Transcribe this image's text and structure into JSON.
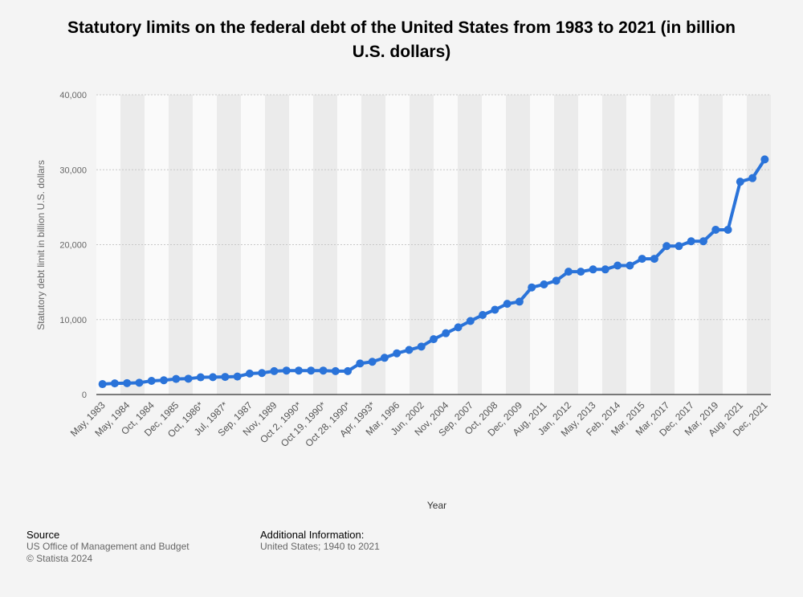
{
  "title": "Statutory limits on the federal debt of the United States from 1983 to 2021 (in billion U.S. dollars)",
  "footer": {
    "source_heading": "Source",
    "source_lines": [
      "US Office of Management and Budget",
      "© Statista 2024"
    ],
    "info_heading": "Additional Information:",
    "info_lines": [
      "United States; 1940 to 2021"
    ]
  },
  "colors": {
    "line": "#2a73d9",
    "band": "#ebebeb",
    "background": "#f4f4f4",
    "grid": "#c8c8c8"
  },
  "chart_data": {
    "type": "line",
    "title": "Statutory limits on the federal debt of the United States from 1983 to 2021 (in billion U.S. dollars)",
    "xlabel": "Year",
    "ylabel": "Statutory debt limit in billion U.S. dollars",
    "ylim": [
      0,
      40000
    ],
    "yticks": [
      0,
      10000,
      20000,
      30000,
      40000
    ],
    "ytick_labels": [
      "0",
      "10,000",
      "20,000",
      "30,000",
      "40,000"
    ],
    "grid": true,
    "legend": "none",
    "categories": [
      "May, 1983",
      "",
      "May, 1984",
      "",
      "Oct, 1984",
      "",
      "Dec, 1985",
      "",
      "Oct, 1986*",
      "",
      "Jul, 1987*",
      "",
      "Sep, 1987",
      "",
      "Nov, 1989",
      "",
      "Oct 2, 1990*",
      "",
      "Oct 19, 1990*",
      "",
      "Oct 28, 1990*",
      "",
      "Apr, 1993*",
      "",
      "Mar, 1996",
      "",
      "Jun, 2002",
      "",
      "Nov, 2004",
      "",
      "Sep, 2007",
      "",
      "Oct, 2008",
      "",
      "Dec, 2009",
      "",
      "Aug, 2011",
      "",
      "Jan, 2012",
      "",
      "May, 2013",
      "",
      "Feb, 2014",
      "",
      "Mar, 2015",
      "",
      "Mar, 2017",
      "",
      "Dec, 2017",
      "",
      "Mar, 2019",
      "",
      "Aug, 2021",
      "",
      "Dec, 2021"
    ],
    "series": [
      {
        "values": [
          1390,
          1490,
          1520,
          1573,
          1823,
          1904,
          2079,
          2111,
          2300,
          2320,
          2352,
          2400,
          2800,
          2870,
          3123,
          3195,
          3195,
          3195,
          3195,
          3122,
          3123,
          4145,
          4370,
          4900,
          5500,
          5950,
          6400,
          7384,
          8184,
          8965,
          9815,
          10615,
          11315,
          12104,
          12394,
          14294,
          14694,
          15194,
          16394,
          16394,
          16699,
          16699,
          17212,
          17212,
          18113,
          18113,
          19809,
          19809,
          20456,
          20456,
          21988,
          21988,
          28401,
          28881,
          31381
        ]
      }
    ]
  }
}
